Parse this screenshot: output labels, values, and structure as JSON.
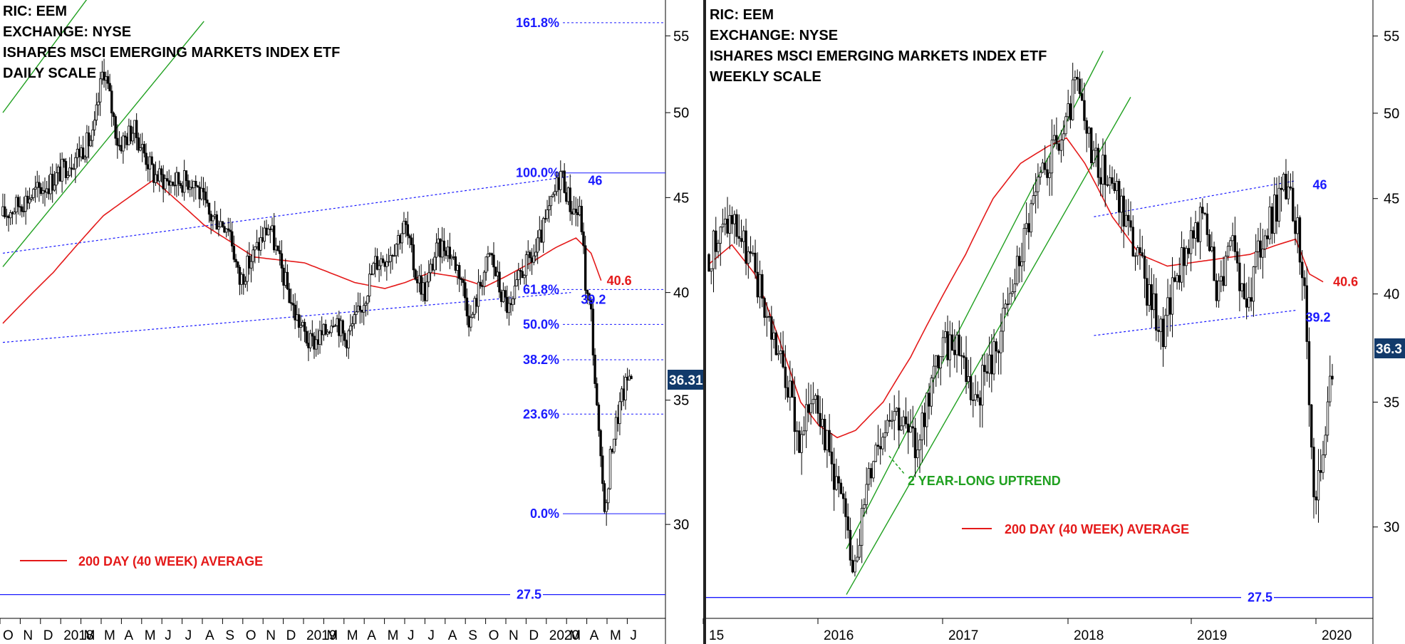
{
  "colors": {
    "ma": "#e41a1a",
    "fib": "#1a1aff",
    "trend": "#20a020",
    "badge": "#123a6b",
    "price": "#000000"
  },
  "chart_data": [
    {
      "type": "candlestick",
      "title_lines": [
        "RIC: EEM",
        "EXCHANGE: NYSE",
        "ISHARES MSCI EMERGING MARKETS INDEX ETF",
        "DAILY SCALE"
      ],
      "ylim": [
        26.7,
        57.5
      ],
      "y_scale": "log",
      "y_ticks": [
        30,
        35,
        40,
        45,
        50,
        55
      ],
      "x_ticks": [
        "O",
        "N",
        "D",
        "2018",
        "M",
        "M",
        "A",
        "M",
        "J",
        "J",
        "A",
        "S",
        "O",
        "N",
        "D",
        "2019",
        "M",
        "M",
        "A",
        "M",
        "J",
        "J",
        "A",
        "S",
        "O",
        "N",
        "D",
        "2020",
        "M",
        "A",
        "M",
        "J"
      ],
      "last_price": "36.31",
      "fib_levels": [
        {
          "label": "161.8%",
          "value": 55.9
        },
        {
          "label": "100.0%",
          "value": 46.4
        },
        {
          "label": "61.8%",
          "value": 40.15
        },
        {
          "label": "50.0%",
          "value": 38.45
        },
        {
          "label": "38.2%",
          "value": 36.8
        },
        {
          "label": "23.6%",
          "value": 34.4
        },
        {
          "label": "0.0%",
          "value": 30.4
        }
      ],
      "horizontal_levels": [
        {
          "label": "27.5",
          "value": 27.5
        }
      ],
      "channel_labels": [
        {
          "label": "46",
          "value": 46
        },
        {
          "label": "39.2",
          "value": 39.2
        }
      ],
      "ma_label": "40.6",
      "legend": "200 DAY (40 WEEK) AVERAGE",
      "price_anchors": [
        [
          0,
          44
        ],
        [
          10,
          46
        ],
        [
          18,
          48.5
        ],
        [
          20,
          53
        ],
        [
          23,
          48
        ],
        [
          26,
          49
        ],
        [
          30,
          46.3
        ],
        [
          33,
          45.9
        ],
        [
          38,
          46
        ],
        [
          41,
          44
        ],
        [
          45,
          43.5
        ],
        [
          47,
          40.5
        ],
        [
          50,
          42
        ],
        [
          53,
          43.5
        ],
        [
          55,
          41.5
        ],
        [
          58,
          39
        ],
        [
          61,
          37.5
        ],
        [
          64,
          38
        ],
        [
          66,
          39
        ],
        [
          68,
          37.7
        ],
        [
          71,
          39
        ],
        [
          74,
          41.5
        ],
        [
          77,
          42
        ],
        [
          80,
          43.5
        ],
        [
          82,
          41
        ],
        [
          84,
          40
        ],
        [
          86,
          42
        ],
        [
          88,
          42.5
        ],
        [
          91,
          41
        ],
        [
          93,
          38.5
        ],
        [
          95,
          40.5
        ],
        [
          97,
          42
        ],
        [
          99,
          40
        ],
        [
          101,
          39
        ],
        [
          103,
          41
        ],
        [
          106,
          42
        ],
        [
          109,
          44.5
        ],
        [
          111,
          46.5
        ],
        [
          113,
          44.5
        ],
        [
          115,
          44
        ],
        [
          116,
          40
        ],
        [
          117,
          39
        ],
        [
          118,
          35
        ],
        [
          119,
          32
        ],
        [
          120,
          30.4
        ],
        [
          121,
          33
        ],
        [
          123,
          35
        ],
        [
          125,
          36.4
        ]
      ],
      "ma_anchors": [
        [
          0,
          38.5
        ],
        [
          10,
          41
        ],
        [
          20,
          44
        ],
        [
          30,
          46
        ],
        [
          40,
          43.5
        ],
        [
          50,
          41.8
        ],
        [
          60,
          41.5
        ],
        [
          70,
          40.5
        ],
        [
          76,
          40.2
        ],
        [
          80,
          40.5
        ],
        [
          85,
          41
        ],
        [
          90,
          40.8
        ],
        [
          96,
          40.3
        ],
        [
          100,
          40.8
        ],
        [
          105,
          41.5
        ],
        [
          110,
          42.3
        ],
        [
          114,
          42.8
        ],
        [
          117,
          42
        ],
        [
          119,
          40.6
        ]
      ],
      "channel_top": [
        [
          0,
          42
        ],
        [
          113,
          46.2
        ]
      ],
      "channel_bottom": [
        [
          0,
          37.6
        ],
        [
          113,
          40
        ]
      ],
      "trend_lines": [
        [
          [
            0,
            50
          ],
          [
            40,
            70
          ]
        ],
        [
          [
            0,
            41.3
          ],
          [
            40,
            56
          ]
        ]
      ]
    },
    {
      "type": "candlestick",
      "title_lines": [
        "RIC: EEM",
        "EXCHANGE: NYSE",
        "ISHARES MSCI EMERGING MARKETS INDEX ETF",
        "WEEKLY SCALE"
      ],
      "ylim": [
        26.8,
        57.5
      ],
      "y_scale": "log",
      "y_ticks": [
        30,
        35,
        40,
        45,
        50,
        55
      ],
      "x_ticks": [
        "15",
        "2016",
        "2017",
        "2018",
        "2019",
        "2020"
      ],
      "last_price": "36.3",
      "horizontal_levels": [
        {
          "label": "27.5",
          "value": 27.5
        }
      ],
      "channel_labels": [
        {
          "label": "46",
          "value": 46
        },
        {
          "label": "39.2",
          "value": 39.2
        }
      ],
      "ma_label": "40.6",
      "legend": "200 DAY (40 WEEK) AVERAGE",
      "annotation": "2 YEAR-LONG UPTREND",
      "price_anchors": [
        [
          0,
          42
        ],
        [
          5,
          44
        ],
        [
          10,
          41
        ],
        [
          14,
          38
        ],
        [
          18,
          35
        ],
        [
          20,
          33
        ],
        [
          23,
          36
        ],
        [
          26,
          33
        ],
        [
          29,
          31
        ],
        [
          31,
          28.5
        ],
        [
          33,
          30
        ],
        [
          36,
          33
        ],
        [
          40,
          35
        ],
        [
          45,
          33
        ],
        [
          50,
          37
        ],
        [
          54,
          38
        ],
        [
          58,
          35
        ],
        [
          62,
          37
        ],
        [
          66,
          40
        ],
        [
          70,
          44
        ],
        [
          74,
          47
        ],
        [
          78,
          49
        ],
        [
          80,
          52
        ],
        [
          82,
          49
        ],
        [
          85,
          47
        ],
        [
          88,
          46
        ],
        [
          92,
          43
        ],
        [
          96,
          40
        ],
        [
          99,
          38
        ],
        [
          102,
          41
        ],
        [
          105,
          43
        ],
        [
          108,
          44
        ],
        [
          111,
          40
        ],
        [
          114,
          43
        ],
        [
          117,
          39
        ],
        [
          120,
          42
        ],
        [
          123,
          44
        ],
        [
          126,
          45.8
        ],
        [
          128,
          44
        ],
        [
          130,
          40.5
        ],
        [
          131,
          35
        ],
        [
          132,
          30.3
        ],
        [
          134,
          33
        ],
        [
          136,
          36.3
        ]
      ],
      "ma_anchors": [
        [
          0,
          41.5
        ],
        [
          5,
          42.5
        ],
        [
          10,
          41
        ],
        [
          15,
          38
        ],
        [
          20,
          35
        ],
        [
          24,
          34
        ],
        [
          28,
          33.5
        ],
        [
          32,
          33.8
        ],
        [
          38,
          35
        ],
        [
          44,
          37
        ],
        [
          50,
          39.5
        ],
        [
          56,
          42
        ],
        [
          62,
          45
        ],
        [
          68,
          47
        ],
        [
          74,
          48
        ],
        [
          78,
          48.5
        ],
        [
          82,
          47
        ],
        [
          88,
          44
        ],
        [
          94,
          42
        ],
        [
          100,
          41.4
        ],
        [
          106,
          41.6
        ],
        [
          112,
          41.8
        ],
        [
          118,
          42
        ],
        [
          124,
          42.5
        ],
        [
          128,
          42.8
        ],
        [
          131,
          41
        ],
        [
          134,
          40.6
        ]
      ],
      "channel_top": [
        [
          84,
          44
        ],
        [
          128,
          46
        ]
      ],
      "channel_bottom": [
        [
          84,
          38
        ],
        [
          128,
          39.2
        ]
      ],
      "trend_lines": [
        [
          [
            30,
            29.2
          ],
          [
            86,
            54
          ]
        ],
        [
          [
            30,
            27.6
          ],
          [
            92,
            51
          ]
        ]
      ]
    }
  ]
}
